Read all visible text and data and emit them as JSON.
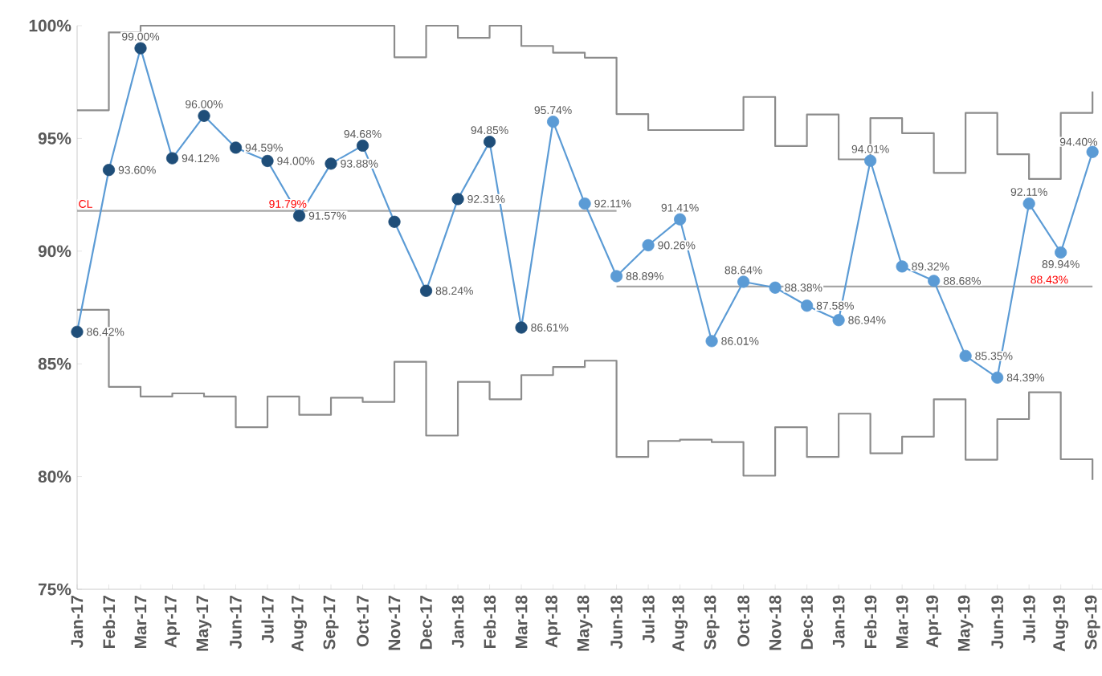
{
  "chart_data": {
    "type": "line",
    "categories": [
      "Jan-17",
      "Feb-17",
      "Mar-17",
      "Apr-17",
      "May-17",
      "Jun-17",
      "Jul-17",
      "Aug-17",
      "Sep-17",
      "Oct-17",
      "Nov-17",
      "Dec-17",
      "Jan-18",
      "Feb-18",
      "Mar-18",
      "Apr-18",
      "May-18",
      "Jun-18",
      "Jul-18",
      "Aug-18",
      "Sep-18",
      "Oct-18",
      "Nov-18",
      "Dec-18",
      "Jan-19",
      "Feb-19",
      "Mar-19",
      "Apr-19",
      "May-19",
      "Jun-19",
      "Jul-19",
      "Aug-19",
      "Sep-19"
    ],
    "series": [
      {
        "type": "step",
        "marker": "none",
        "color": "#8c8c8c",
        "values": [
          96.25,
          99.7,
          100,
          100,
          100,
          100,
          100,
          100,
          100,
          100,
          98.6,
          100,
          99.46,
          100,
          99.1,
          98.8,
          98.58,
          96.08,
          95.37,
          95.37,
          95.37,
          96.84,
          94.66,
          96.06,
          94.07,
          95.9,
          95.23,
          93.47,
          96.13,
          94.3,
          93.2,
          96.13,
          97.08
        ]
      },
      {
        "type": "step",
        "marker": "none",
        "color": "#8c8c8c",
        "values": [
          87.4,
          83.98,
          83.55,
          83.69,
          83.55,
          82.19,
          83.55,
          82.74,
          83.5,
          83.31,
          85.09,
          81.82,
          84.2,
          83.43,
          84.5,
          84.86,
          85.14,
          80.87,
          81.58,
          81.64,
          81.53,
          80.04,
          82.19,
          80.87,
          82.79,
          81.03,
          81.77,
          83.43,
          80.75,
          82.55,
          83.74,
          80.77,
          79.85
        ]
      },
      {
        "type": "line",
        "marker": "none",
        "color": "#a6a6a6",
        "values": [
          91.79,
          91.79,
          91.79,
          91.79,
          91.79,
          91.79,
          91.79,
          91.79,
          91.79,
          91.79,
          91.79,
          91.79,
          91.79,
          91.79,
          91.79,
          91.79,
          91.79,
          91.79,
          null,
          null,
          null,
          null,
          null,
          null,
          null,
          null,
          null,
          null,
          null,
          null,
          null,
          null,
          null
        ]
      },
      {
        "type": "line",
        "marker": "none",
        "color": "#a6a6a6",
        "values": [
          null,
          null,
          null,
          null,
          null,
          null,
          null,
          null,
          null,
          null,
          null,
          null,
          null,
          null,
          null,
          null,
          null,
          88.43,
          88.43,
          88.43,
          88.43,
          88.43,
          88.43,
          88.43,
          88.43,
          88.43,
          88.43,
          88.43,
          88.43,
          88.43,
          88.43,
          88.43,
          88.43
        ]
      },
      {
        "color": "#5b9bd5",
        "colors": [
          "#1f4e79",
          "#1f4e79",
          "#1f4e79",
          "#1f4e79",
          "#1f4e79",
          "#1f4e79",
          "#1f4e79",
          "#1f4e79",
          "#1f4e79",
          "#1f4e79",
          "#1f4e79",
          "#1f4e79",
          "#1f4e79",
          "#1f4e79",
          "#1f4e79",
          "#5b9bd5",
          "#5b9bd5",
          "#5b9bd5",
          "#5b9bd5",
          "#5b9bd5",
          "#5b9bd5",
          "#5b9bd5",
          "#5b9bd5",
          "#5b9bd5",
          "#5b9bd5",
          "#5b9bd5",
          "#5b9bd5",
          "#5b9bd5",
          "#5b9bd5",
          "#5b9bd5",
          "#5b9bd5",
          "#5b9bd5",
          "#5b9bd5"
        ],
        "values": [
          86.42,
          93.6,
          99.0,
          94.12,
          96.0,
          94.59,
          94.0,
          91.57,
          93.88,
          94.68,
          91.3,
          88.24,
          92.31,
          94.85,
          86.61,
          95.74,
          92.11,
          88.89,
          90.26,
          91.41,
          86.01,
          88.64,
          88.38,
          87.58,
          86.94,
          94.01,
          89.32,
          88.68,
          85.35,
          84.39,
          92.11,
          89.94,
          94.4
        ],
        "value_labels": [
          "86.42%",
          "93.60%",
          "99.00%",
          "94.12%",
          "96.00%",
          "94.59%",
          "94.00%",
          "91.57%",
          "93.88%",
          "94.68%",
          null,
          "88.24%",
          "92.31%",
          "94.85%",
          "86.61%",
          "95.74%",
          "92.11%",
          "88.89%",
          "90.26%",
          "91.41%",
          "86.01%",
          "88.64%",
          "88.38%",
          "87.58%",
          "86.94%",
          "94.01%",
          "89.32%",
          "88.68%",
          "85.35%",
          "84.39%",
          "92.11%",
          "89.94%",
          "94.40%"
        ]
      }
    ],
    "annotations": [
      {
        "text": "CL",
        "x": "Jan-17",
        "y": 91.79
      },
      {
        "text": "91.79%",
        "x": "Jul-17",
        "y": 91.79
      },
      {
        "text": "88.43%",
        "x": "Jul-19",
        "y": 88.43
      }
    ],
    "ylim": [
      75,
      100
    ],
    "yticks": [
      {
        "value": 75,
        "label": "75%"
      },
      {
        "value": 80,
        "label": "80%"
      },
      {
        "value": 85,
        "label": "85%"
      },
      {
        "value": 90,
        "label": "90%"
      },
      {
        "value": 95,
        "label": "95%"
      },
      {
        "value": 100,
        "label": "100%"
      }
    ],
    "marker": "circle"
  }
}
